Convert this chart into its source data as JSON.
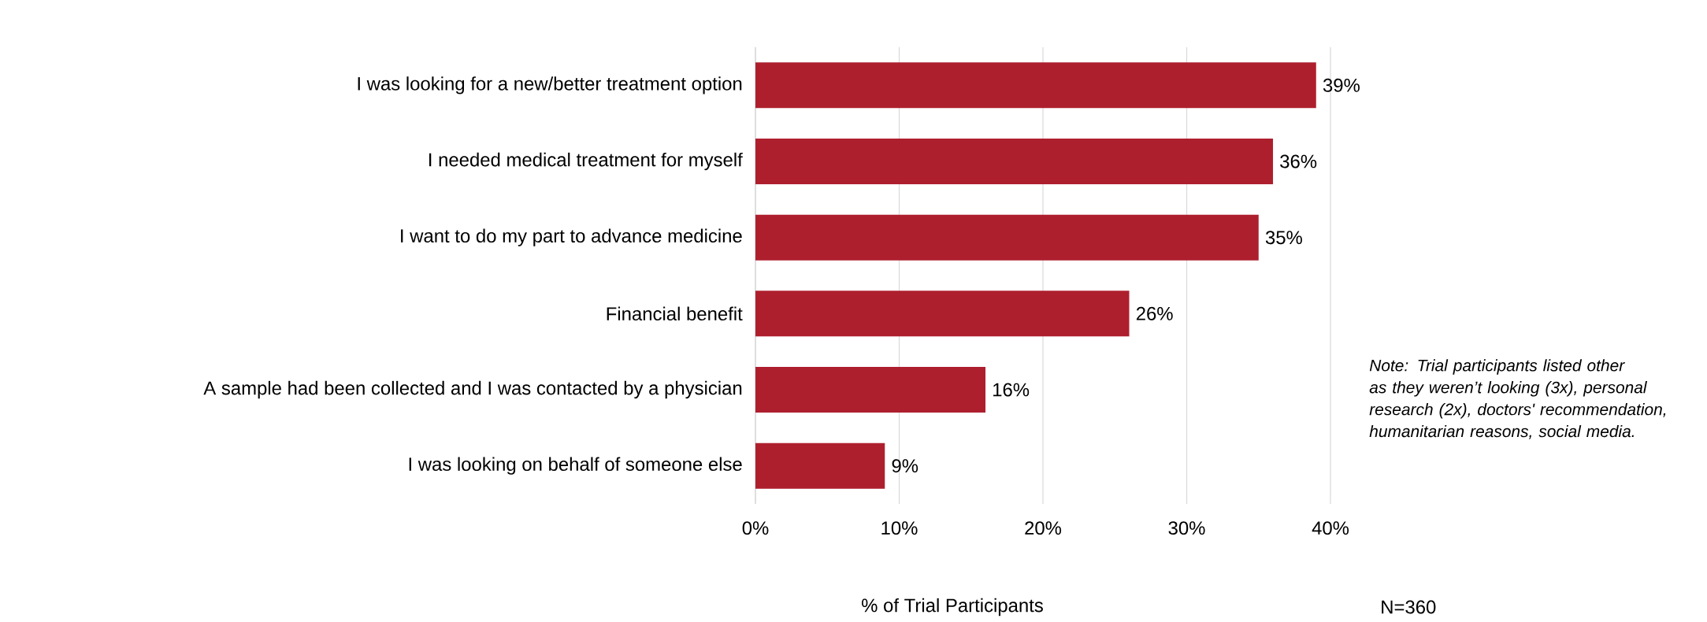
{
  "chart_data": {
    "type": "bar",
    "orientation": "horizontal",
    "xlabel": "% of Trial Participants",
    "categories": [
      "I was looking for a new/better treatment option",
      "I needed medical treatment for myself",
      "I want to do my part to advance medicine",
      "Financial benefit",
      "A sample had been collected and I was contacted by a physician",
      "I was looking on behalf of someone else"
    ],
    "values": [
      39,
      36,
      35,
      26,
      16,
      9
    ],
    "value_labels": [
      "39%",
      "36%",
      "35%",
      "26%",
      "16%",
      "9%"
    ],
    "color": "#ae1f2e",
    "xlim": [
      0,
      40
    ],
    "xticks": [
      {
        "value": 0,
        "label": "0%"
      },
      {
        "value": 10,
        "label": "10%"
      },
      {
        "value": 20,
        "label": "20%"
      },
      {
        "value": 30,
        "label": "30%"
      },
      {
        "value": 40,
        "label": "40%"
      }
    ],
    "grid": "x",
    "annotations": [
      "Note: Trial participants listed other as they weren’t looking (3x), personal research (2x), doctors' recommendation, humanitarian reasons, social media.",
      "N=360"
    ]
  }
}
